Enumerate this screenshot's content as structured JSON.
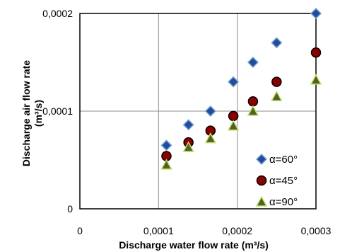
{
  "chart_data": {
    "type": "scatter",
    "title": "",
    "xlabel": "Discharge water flow rate (m³/s)",
    "ylabel_line1": "Discharge air flow rate",
    "ylabel_line2": "(m³/s)",
    "xlim": [
      0,
      0.0003
    ],
    "ylim": [
      0,
      0.0002
    ],
    "x_ticks": [
      {
        "value": 0,
        "label": "0"
      },
      {
        "value": 0.0001,
        "label": "0,0001"
      },
      {
        "value": 0.0002,
        "label": "0,0002"
      },
      {
        "value": 0.0003,
        "label": "0,0003"
      }
    ],
    "y_ticks": [
      {
        "value": 0,
        "label": "0"
      },
      {
        "value": 0.0001,
        "label": "0,0001"
      },
      {
        "value": 0.0002,
        "label": "0,0002"
      }
    ],
    "grid": true,
    "legend_position": "lower-right",
    "series": [
      {
        "name": "α=60°",
        "marker": "diamond",
        "color": "#1F4E9A",
        "edge": "#7FA3D8",
        "points": [
          {
            "x": 0.00011,
            "y": 6.5e-05
          },
          {
            "x": 0.000138,
            "y": 8.6e-05
          },
          {
            "x": 0.000166,
            "y": 0.0001
          },
          {
            "x": 0.000195,
            "y": 0.00013
          },
          {
            "x": 0.00022,
            "y": 0.00015
          },
          {
            "x": 0.00025,
            "y": 0.00017
          },
          {
            "x": 0.0003,
            "y": 0.0002
          }
        ]
      },
      {
        "name": "α=45°",
        "marker": "circle",
        "color": "#8B0000",
        "edge": "#000000",
        "points": [
          {
            "x": 0.00011,
            "y": 5.4e-05
          },
          {
            "x": 0.000138,
            "y": 6.8e-05
          },
          {
            "x": 0.000166,
            "y": 8e-05
          },
          {
            "x": 0.000195,
            "y": 9.5e-05
          },
          {
            "x": 0.00022,
            "y": 0.00011
          },
          {
            "x": 0.00025,
            "y": 0.00013
          },
          {
            "x": 0.0003,
            "y": 0.00016
          }
        ]
      },
      {
        "name": "α=90°",
        "marker": "triangle",
        "color": "#4F6228",
        "edge": "#C5E06A",
        "points": [
          {
            "x": 0.00011,
            "y": 4.5e-05
          },
          {
            "x": 0.000138,
            "y": 6.3e-05
          },
          {
            "x": 0.000166,
            "y": 7.2e-05
          },
          {
            "x": 0.000195,
            "y": 8.5e-05
          },
          {
            "x": 0.00022,
            "y": 0.0001
          },
          {
            "x": 0.00025,
            "y": 0.000115
          },
          {
            "x": 0.0003,
            "y": 0.000132
          }
        ]
      }
    ]
  }
}
